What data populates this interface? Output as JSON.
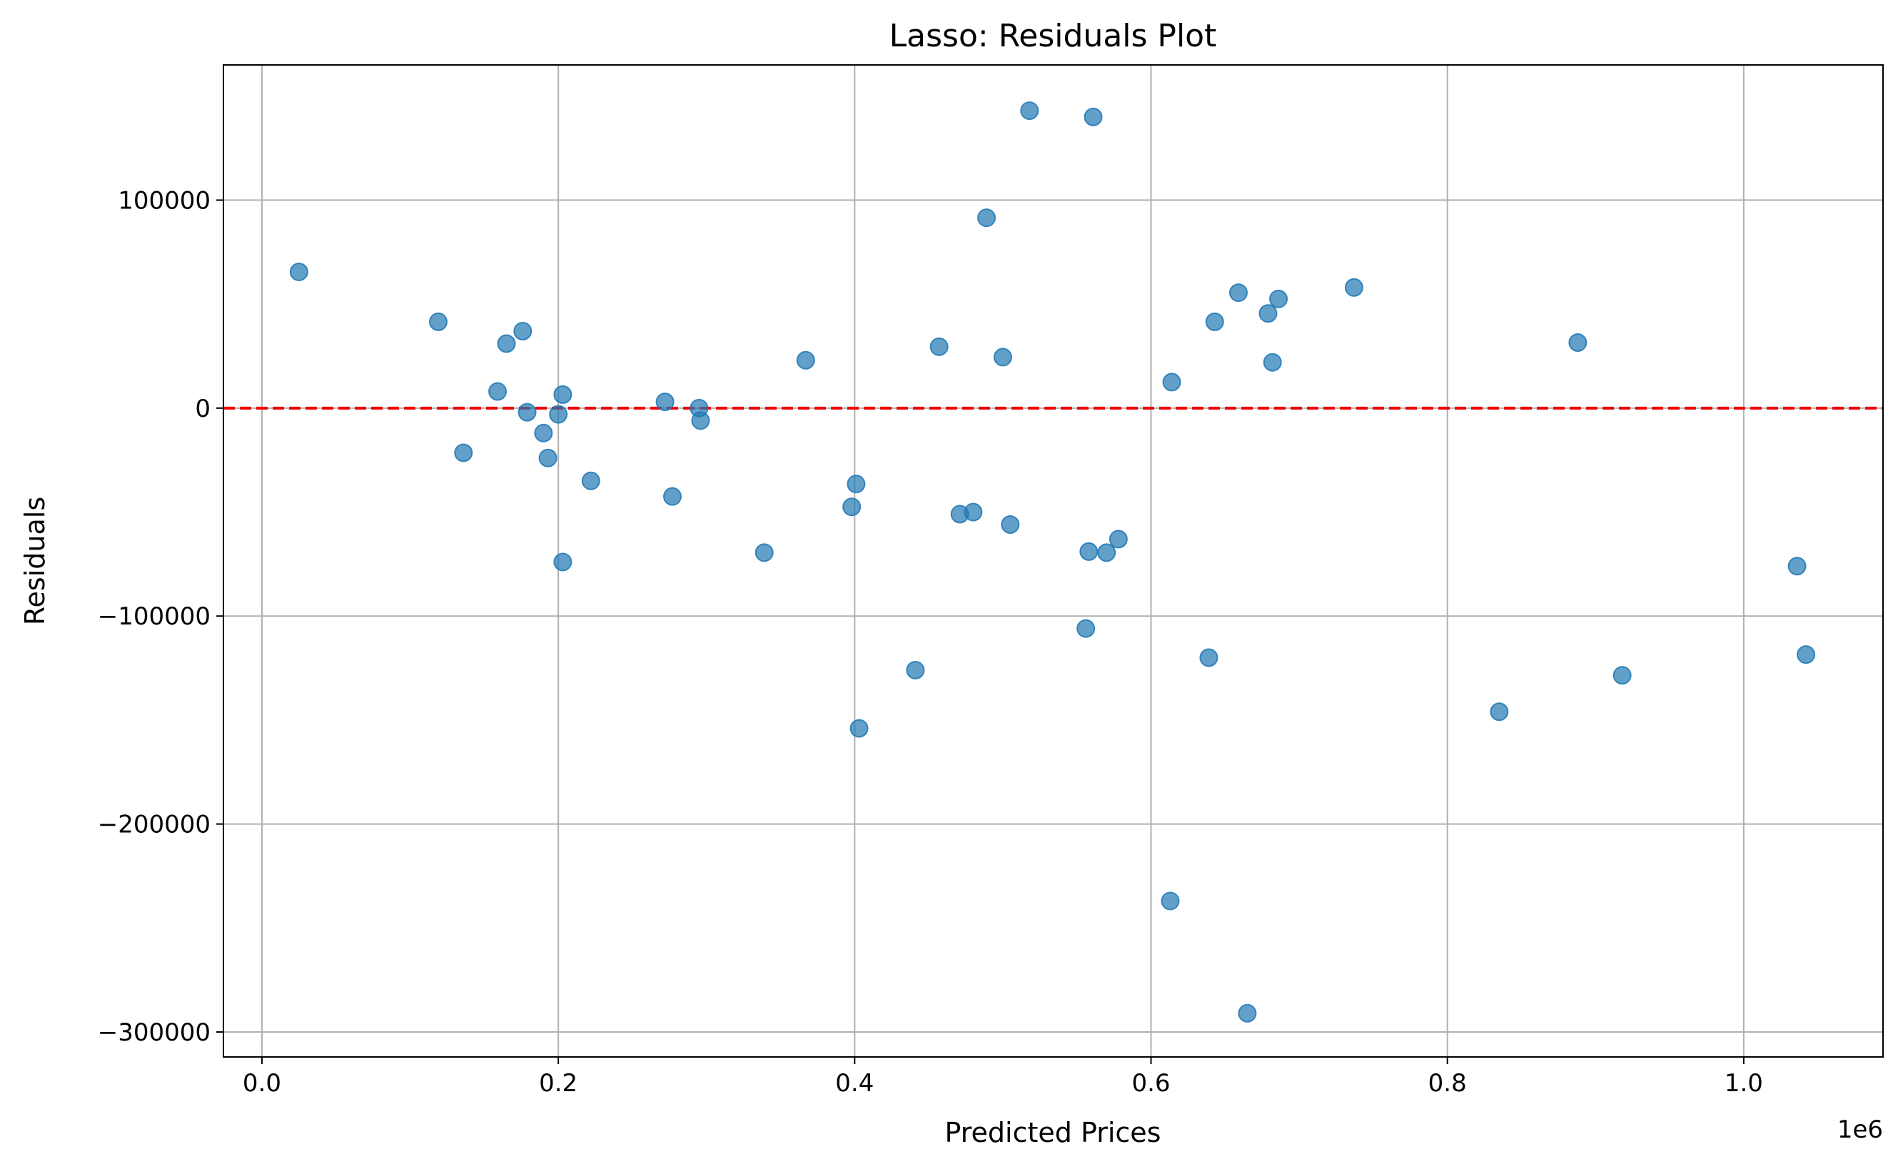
{
  "chart_data": {
    "type": "scatter",
    "title": "Lasso: Residuals Plot",
    "xlabel": "Predicted Prices",
    "ylabel": "Residuals",
    "x_offset_label": "1e6",
    "x_scale": 1000000,
    "xlim": [
      -26000,
      1094000
    ],
    "ylim": [
      -312000,
      165000
    ],
    "x_ticks": [
      0,
      200000,
      400000,
      600000,
      800000,
      1000000
    ],
    "x_tick_labels": [
      "0.0",
      "0.2",
      "0.4",
      "0.6",
      "0.8",
      "1.0"
    ],
    "y_ticks": [
      -300000,
      -200000,
      -100000,
      0,
      100000
    ],
    "y_tick_labels": [
      "−300000",
      "−200000",
      "−100000",
      "0",
      "100000"
    ],
    "grid": true,
    "reference_line": {
      "y": 0,
      "style": "dashed",
      "color": "#ee0000"
    },
    "marker_color": "#1f77b4",
    "marker_alpha": 0.7,
    "points": [
      {
        "x": 25000,
        "y": 65500
      },
      {
        "x": 119000,
        "y": 41500
      },
      {
        "x": 136000,
        "y": -21500
      },
      {
        "x": 159000,
        "y": 8000
      },
      {
        "x": 165000,
        "y": 31000
      },
      {
        "x": 176000,
        "y": 37000
      },
      {
        "x": 179000,
        "y": -2000
      },
      {
        "x": 190000,
        "y": -12000
      },
      {
        "x": 193000,
        "y": -24000
      },
      {
        "x": 200000,
        "y": -3000
      },
      {
        "x": 203000,
        "y": 6500
      },
      {
        "x": 203000,
        "y": -74000
      },
      {
        "x": 222000,
        "y": -35000
      },
      {
        "x": 272000,
        "y": 3000
      },
      {
        "x": 277000,
        "y": -42500
      },
      {
        "x": 295000,
        "y": 0
      },
      {
        "x": 296000,
        "y": -6000
      },
      {
        "x": 339000,
        "y": -69500
      },
      {
        "x": 367000,
        "y": 23000
      },
      {
        "x": 398000,
        "y": -47500
      },
      {
        "x": 401000,
        "y": -36500
      },
      {
        "x": 403000,
        "y": -154000
      },
      {
        "x": 441000,
        "y": -126000
      },
      {
        "x": 457000,
        "y": 29500
      },
      {
        "x": 471000,
        "y": -51000
      },
      {
        "x": 480000,
        "y": -50000
      },
      {
        "x": 489000,
        "y": 91500
      },
      {
        "x": 500000,
        "y": 24500
      },
      {
        "x": 505000,
        "y": -56000
      },
      {
        "x": 518000,
        "y": 143000
      },
      {
        "x": 556000,
        "y": -106000
      },
      {
        "x": 558000,
        "y": -69000
      },
      {
        "x": 561000,
        "y": 140000
      },
      {
        "x": 570000,
        "y": -69500
      },
      {
        "x": 578000,
        "y": -63000
      },
      {
        "x": 613000,
        "y": -237000
      },
      {
        "x": 614000,
        "y": 12500
      },
      {
        "x": 639000,
        "y": -120000
      },
      {
        "x": 643000,
        "y": 41500
      },
      {
        "x": 659000,
        "y": 55500
      },
      {
        "x": 665000,
        "y": -291000
      },
      {
        "x": 679000,
        "y": 45500
      },
      {
        "x": 682000,
        "y": 22000
      },
      {
        "x": 686000,
        "y": 52500
      },
      {
        "x": 737000,
        "y": 58000
      },
      {
        "x": 835000,
        "y": -146000
      },
      {
        "x": 888000,
        "y": 31500
      },
      {
        "x": 918000,
        "y": -128500
      },
      {
        "x": 1036000,
        "y": -76000
      },
      {
        "x": 1042000,
        "y": -118500
      }
    ]
  }
}
